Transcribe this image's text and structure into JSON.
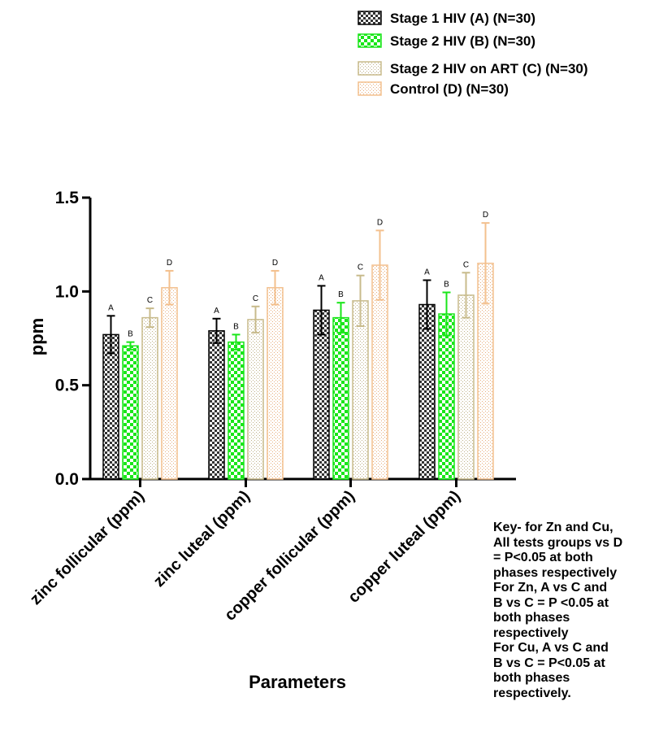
{
  "chart_data": {
    "type": "bar",
    "xlabel": "Parameters",
    "ylabel": "ppm",
    "ylim": [
      0,
      1.5
    ],
    "yticks": [
      "0.0",
      "0.5",
      "1.0",
      "1.5"
    ],
    "categories": [
      "zinc follicular (ppm)",
      "zinc luteal (ppm)",
      "copper follicular (ppm)",
      "copper luteal (ppm)"
    ],
    "legend_placement": "top-right",
    "series": [
      {
        "name": "Stage 1 HIV (A) (N=30)",
        "label": "A",
        "color": "#000000",
        "pattern": "checker-dark",
        "values": [
          0.77,
          0.79,
          0.9,
          0.93
        ],
        "errors": [
          0.1,
          0.065,
          0.13,
          0.13
        ]
      },
      {
        "name": "Stage 2 HIV (B) (N=30)",
        "label": "B",
        "color": "#19e619",
        "pattern": "checker-green",
        "values": [
          0.71,
          0.73,
          0.86,
          0.88
        ],
        "errors": [
          0.02,
          0.04,
          0.08,
          0.115
        ]
      },
      {
        "name": "Stage 2 HIV on ART (C) (N=30)",
        "label": "C",
        "color": "#c8bb8c",
        "pattern": "dots-khaki",
        "values": [
          0.86,
          0.85,
          0.95,
          0.98
        ],
        "errors": [
          0.05,
          0.07,
          0.135,
          0.12
        ]
      },
      {
        "name": "Control (D) (N=30)",
        "label": "D",
        "color": "#f3c08e",
        "pattern": "dots-peach",
        "values": [
          1.02,
          1.02,
          1.14,
          1.15
        ],
        "errors": [
          0.09,
          0.09,
          0.185,
          0.215
        ]
      }
    ]
  },
  "key_note": [
    "Key- for Zn and Cu,",
    "All tests groups vs D",
    "= P<0.05 at both",
    "phases respectively",
    "For Zn, A vs C and",
    "B vs C = P <0.05 at",
    "both phases",
    "respectively",
    "For Cu, A vs C and",
    "B vs C = P<0.05 at",
    "both phases",
    "respectively."
  ]
}
